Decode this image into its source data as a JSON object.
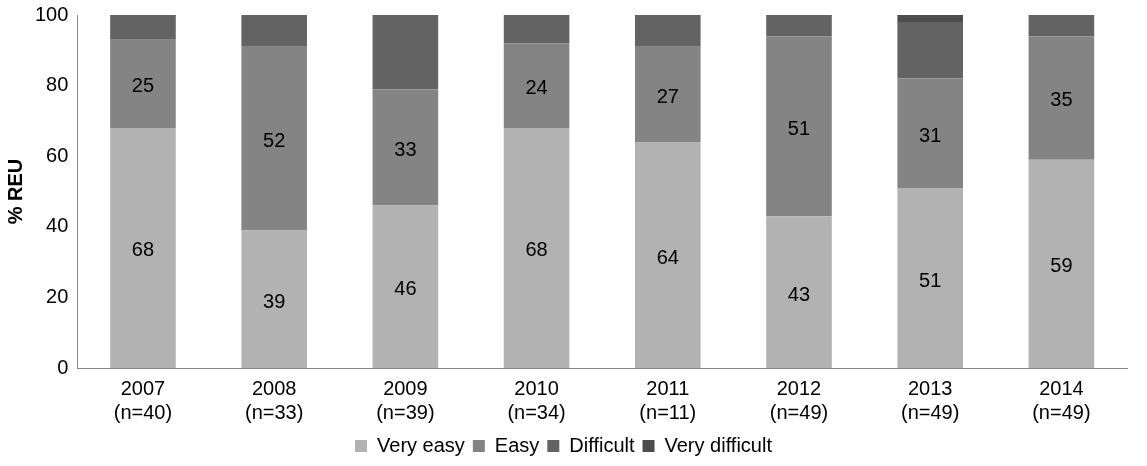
{
  "chart_data": {
    "type": "bar",
    "stacked": true,
    "ylabel": "% REU",
    "categories": [
      "2007\n(n=40)",
      "2008\n(n=33)",
      "2009\n(n=39)",
      "2010\n(n=34)",
      "2011\n(n=11)",
      "2012\n(n=49)",
      "2013\n(n=49)",
      "2014\n(n=49)"
    ],
    "series": [
      {
        "name": "Very easy",
        "color": "#b2b2b2",
        "values": [
          68,
          39,
          46,
          68,
          64,
          43,
          51,
          59
        ],
        "value_labels": [
          "68",
          "39",
          "46",
          "68",
          "64",
          "43",
          "51",
          "59"
        ]
      },
      {
        "name": "Easy",
        "color": "#848484",
        "values": [
          25,
          52,
          33,
          24,
          27,
          51,
          31,
          35
        ],
        "value_labels": [
          "25",
          "52",
          "33",
          "24",
          "27",
          "51",
          "31",
          "35"
        ]
      },
      {
        "name": "Difficult",
        "color": "#636363",
        "values": [
          7,
          9,
          21,
          8,
          9,
          6,
          16,
          6
        ]
      },
      {
        "name": "Very difficult",
        "color": "#4d4d4d",
        "values": [
          0,
          0,
          0,
          0,
          0,
          0,
          2,
          0
        ]
      }
    ],
    "ylim": [
      0,
      100
    ],
    "yticks": [
      0,
      20,
      40,
      60,
      80,
      100
    ],
    "grid": false,
    "legend": "bottom"
  }
}
